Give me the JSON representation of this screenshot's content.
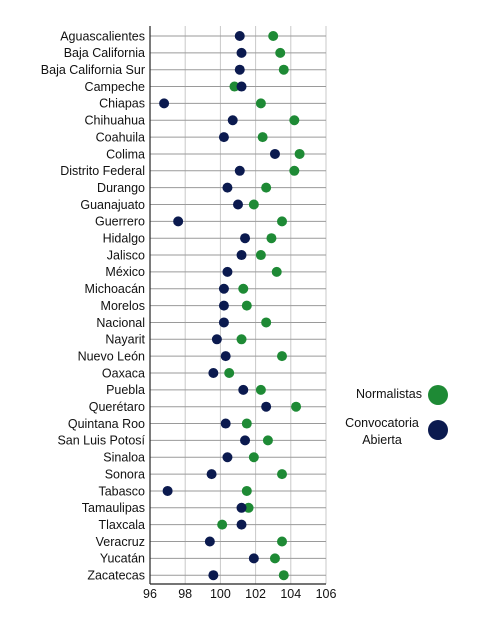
{
  "chart_data": {
    "type": "scatter",
    "categories": [
      "Aguascalientes",
      "Baja California",
      "Baja California Sur",
      "Campeche",
      "Chiapas",
      "Chihuahua",
      "Coahuila",
      "Colima",
      "Distrito Federal",
      "Durango",
      "Guanajuato",
      "Guerrero",
      "Hidalgo",
      "Jalisco",
      "México",
      "Michoacán",
      "Morelos",
      "Nacional",
      "Nayarit",
      "Nuevo León",
      "Oaxaca",
      "Puebla",
      "Querétaro",
      "Quintana Roo",
      "San Luis Potosí",
      "Sinaloa",
      "Sonora",
      "Tabasco",
      "Tamaulipas",
      "Tlaxcala",
      "Veracruz",
      "Yucatán",
      "Zacatecas"
    ],
    "series": [
      {
        "name": "Normalistas",
        "color": "#1e8a35",
        "values": [
          103.0,
          103.4,
          103.6,
          100.8,
          102.3,
          104.2,
          102.4,
          104.5,
          104.2,
          102.6,
          101.9,
          103.5,
          102.9,
          102.3,
          103.2,
          101.3,
          101.5,
          102.6,
          101.2,
          103.5,
          100.5,
          102.3,
          104.3,
          101.5,
          102.7,
          101.9,
          103.5,
          101.5,
          101.6,
          100.1,
          103.5,
          103.1,
          103.6
        ]
      },
      {
        "name": "Convocatoria Abierta",
        "color": "#0b1a4f",
        "values": [
          101.1,
          101.2,
          101.1,
          101.2,
          96.8,
          100.7,
          100.2,
          103.1,
          101.1,
          100.4,
          101.0,
          97.6,
          101.4,
          101.2,
          100.4,
          100.2,
          100.2,
          100.2,
          99.8,
          100.3,
          99.6,
          101.3,
          102.6,
          100.3,
          101.4,
          100.4,
          99.5,
          97.0,
          101.2,
          101.2,
          99.4,
          101.9,
          99.6
        ]
      }
    ],
    "xlim": [
      96,
      106
    ],
    "xticks": [
      "96",
      "98",
      "100",
      "102",
      "104",
      "106"
    ],
    "grid": true,
    "legend_position": "right"
  }
}
